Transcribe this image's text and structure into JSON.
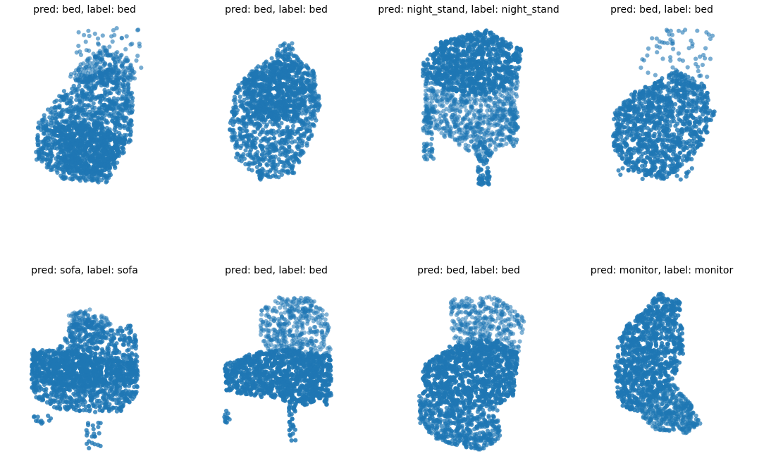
{
  "figure": {
    "point_color": "#1f77b4",
    "background": "#ffffff",
    "grid": "off",
    "axes": "hidden"
  },
  "chart_data": [
    {
      "type": "scatter",
      "title": "pred: bed, label: bed",
      "pred": "bed",
      "label": "bed",
      "row": 0,
      "col": 0,
      "shape": "box_slanted"
    },
    {
      "type": "scatter",
      "title": "pred: bed, label: bed",
      "pred": "bed",
      "label": "bed",
      "row": 0,
      "col": 1,
      "shape": "blob_upright"
    },
    {
      "type": "scatter",
      "title": "pred: night_stand, label: night_stand",
      "pred": "night_stand",
      "label": "night_stand",
      "row": 0,
      "col": 2,
      "shape": "stand_with_legs"
    },
    {
      "type": "scatter",
      "title": "pred: bed, label: bed",
      "pred": "bed",
      "label": "bed",
      "row": 0,
      "col": 3,
      "shape": "box_with_spray"
    },
    {
      "type": "scatter",
      "title": "pred: sofa, label: sofa",
      "pred": "sofa",
      "label": "sofa",
      "row": 1,
      "col": 0,
      "shape": "sofa"
    },
    {
      "type": "scatter",
      "title": "pred: bed, label: bed",
      "pred": "bed",
      "label": "bed",
      "row": 1,
      "col": 1,
      "shape": "chair_low"
    },
    {
      "type": "scatter",
      "title": "pred: bed, label: bed",
      "pred": "bed",
      "label": "bed",
      "row": 1,
      "col": 2,
      "shape": "chair_tall"
    },
    {
      "type": "scatter",
      "title": "pred: monitor, label: monitor",
      "pred": "monitor",
      "label": "monitor",
      "row": 1,
      "col": 3,
      "shape": "monitor"
    }
  ]
}
